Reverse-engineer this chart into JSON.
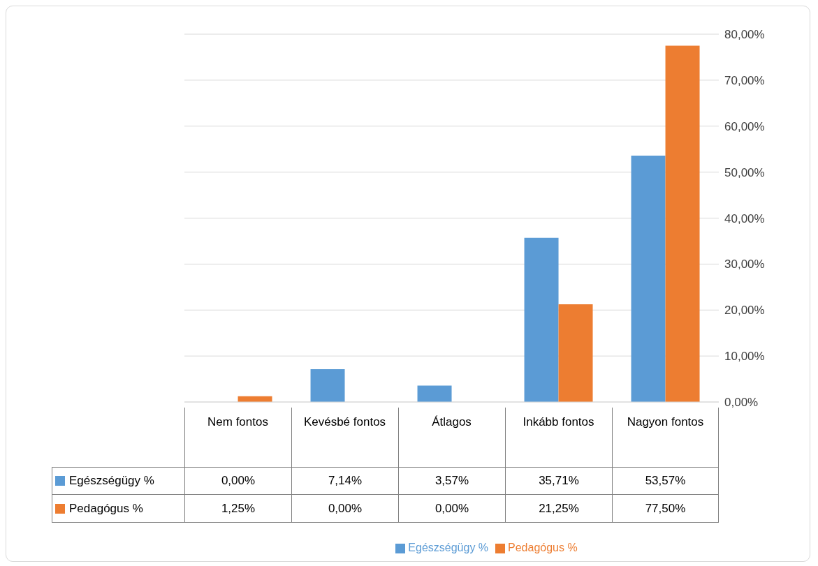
{
  "chart_data": {
    "type": "bar",
    "categories": [
      "Nem fontos",
      "Kevésbé fontos",
      "Átlagos",
      "Inkább fontos",
      "Nagyon fontos"
    ],
    "series": [
      {
        "name": "Egészségügy %",
        "color": "#5b9bd5",
        "values": [
          0,
          7.14,
          3.57,
          35.71,
          53.57
        ],
        "value_labels": [
          "0,00%",
          "7,14%",
          "3,57%",
          "35,71%",
          "53,57%"
        ]
      },
      {
        "name": "Pedagógus %",
        "color": "#ed7d31",
        "values": [
          1.25,
          0,
          0,
          21.25,
          77.5
        ],
        "value_labels": [
          "1,25%",
          "0,00%",
          "0,00%",
          "21,25%",
          "77,50%"
        ]
      }
    ],
    "ylim": [
      0,
      80
    ],
    "yticks": [
      {
        "value": 0,
        "label": "0,00%"
      },
      {
        "value": 10,
        "label": "10,00%"
      },
      {
        "value": 20,
        "label": "20,00%"
      },
      {
        "value": 30,
        "label": "30,00%"
      },
      {
        "value": 40,
        "label": "40,00%"
      },
      {
        "value": 50,
        "label": "50,00%"
      },
      {
        "value": 60,
        "label": "60,00%"
      },
      {
        "value": 70,
        "label": "70,00%"
      },
      {
        "value": 80,
        "label": "80,00%"
      }
    ],
    "grid": "y",
    "legend": "bottom"
  }
}
